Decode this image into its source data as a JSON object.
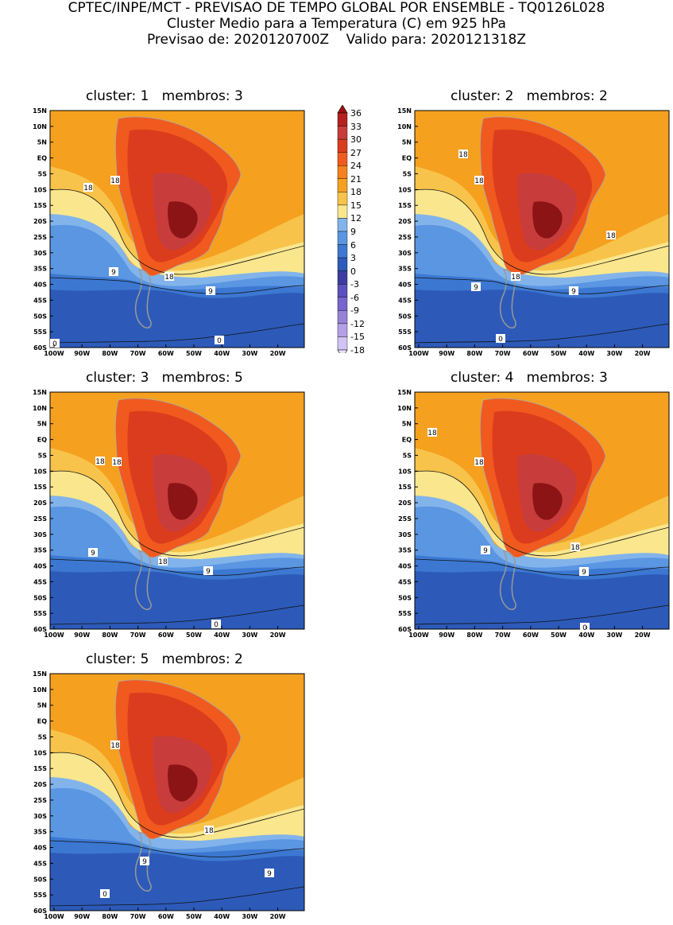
{
  "header": {
    "line1": "CPTEC/INPE/MCT - PREVISAO DE TEMPO GLOBAL POR ENSEMBLE - TQ0126L028",
    "line2": "Cluster Medio para a Temperatura (C) em 925 hPa",
    "line3": "Previsao de: 2020120700Z    Valido para: 2020121318Z"
  },
  "lat_labels": [
    "15N",
    "10N",
    "5N",
    "EQ",
    "5S",
    "10S",
    "15S",
    "20S",
    "25S",
    "30S",
    "35S",
    "40S",
    "45S",
    "50S",
    "55S",
    "60S"
  ],
  "lon_labels": [
    "100W",
    "90W",
    "80W",
    "70W",
    "60W",
    "50W",
    "40W",
    "30W",
    "20W"
  ],
  "panels": [
    {
      "title": "cluster: 1   membros: 3",
      "contour_labels": [
        "18",
        "18",
        "18",
        "9",
        "9",
        "0",
        "0"
      ]
    },
    {
      "title": "cluster: 2   membros: 2",
      "contour_labels": [
        "18",
        "18",
        "18",
        "18",
        "9",
        "9",
        "0"
      ]
    },
    {
      "title": "cluster: 3   membros: 5",
      "contour_labels": [
        "18",
        "18",
        "18",
        "9",
        "9",
        "0"
      ]
    },
    {
      "title": "cluster: 4   membros: 3",
      "contour_labels": [
        "18",
        "18",
        "18",
        "9",
        "9",
        "0"
      ]
    },
    {
      "title": "cluster: 5   membros: 2",
      "contour_labels": [
        "18",
        "18",
        "9",
        "9",
        "0"
      ]
    }
  ],
  "colorbar": {
    "labels": [
      "36",
      "33",
      "30",
      "27",
      "24",
      "21",
      "18",
      "15",
      "12",
      "9",
      "6",
      "3",
      "0",
      "-3",
      "-6",
      "-9",
      "-12",
      "-15",
      "-18"
    ],
    "colors": [
      "#9b1010",
      "#b42020",
      "#c83c3c",
      "#dc3c1e",
      "#f05a1e",
      "#f5821e",
      "#f5a01e",
      "#f7c34b",
      "#fae68c",
      "#82b4eb",
      "#5a96e1",
      "#3c78d2",
      "#2d5ab9",
      "#3c3ca0",
      "#5a50be",
      "#7864cd",
      "#9682d7",
      "#b4a0e6",
      "#d2c3f5",
      "#ebe1fa"
    ]
  },
  "temperature_colors": {
    "hot_core": "#b43c3c",
    "very_hot": "#c83c3c",
    "hot": "#dc3c1e",
    "warm_red": "#f05a1e",
    "warm": "#f5821e",
    "ocean_warm": "#f5a01e",
    "mild": "#f7c34b",
    "pale": "#fae68c",
    "cool": "#82b4eb",
    "cooler": "#5a96e1",
    "cold": "#3c78d2",
    "colder": "#2d5ab9"
  }
}
